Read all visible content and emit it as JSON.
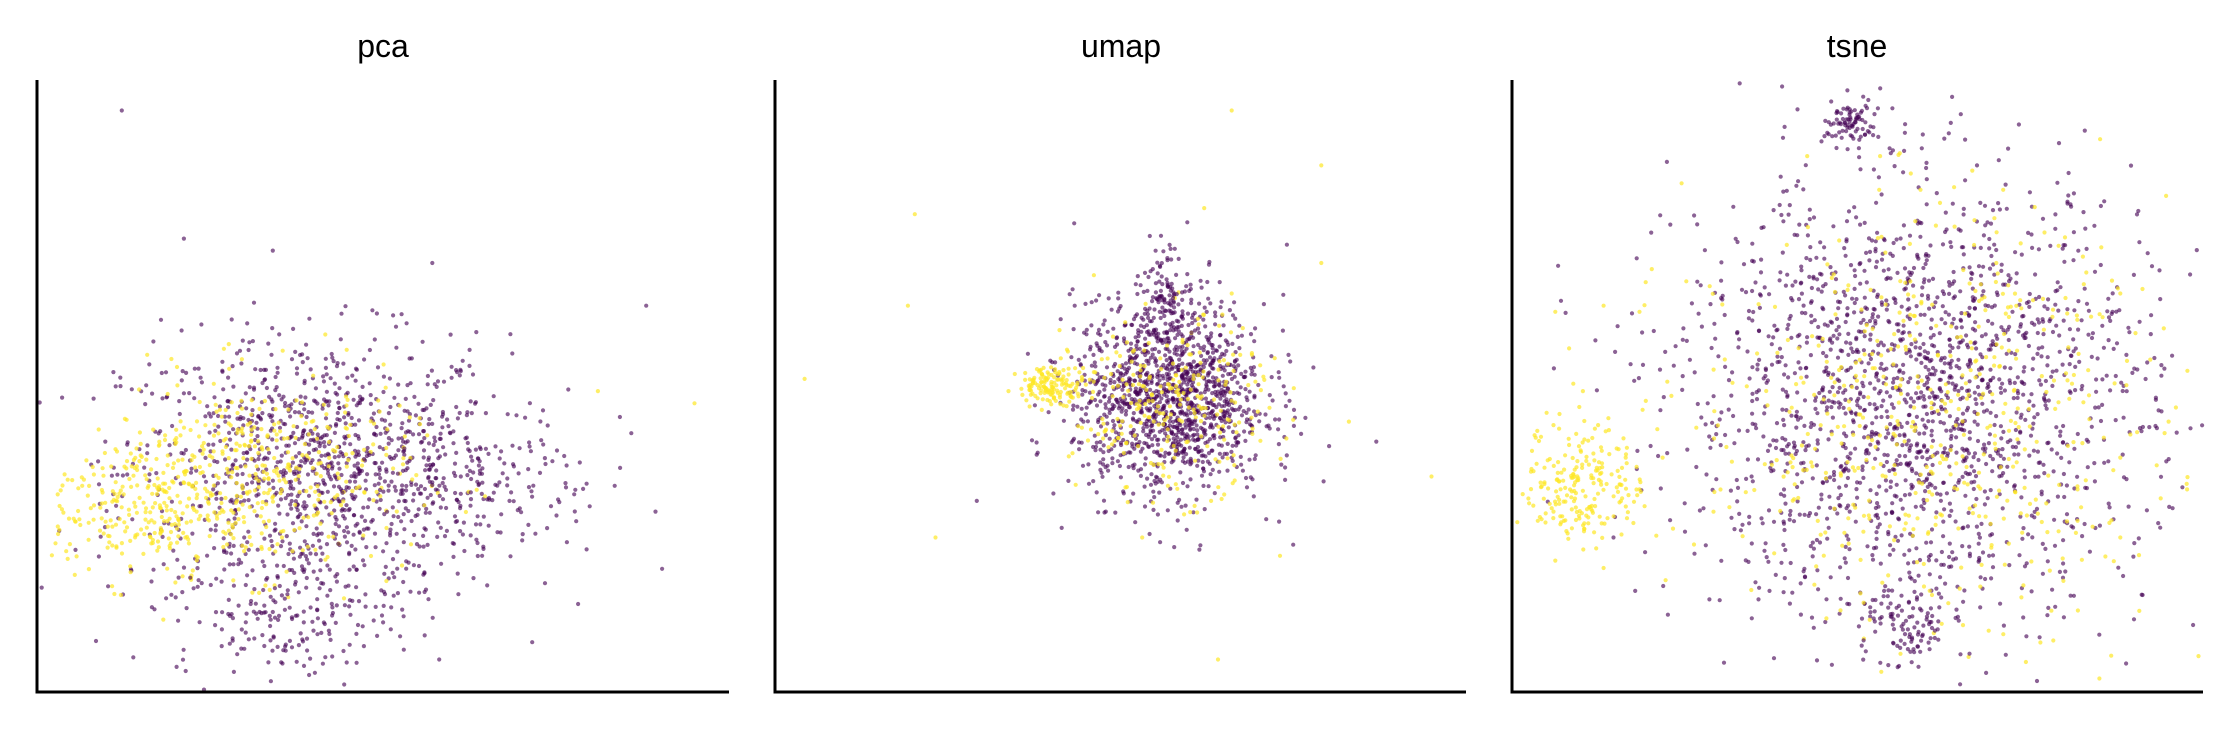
{
  "chart_data": [
    {
      "type": "scatter",
      "title": "pca",
      "xlabel": "",
      "ylabel": "",
      "xlim": [
        0,
        100
      ],
      "ylim": [
        0,
        100
      ],
      "grid": false,
      "legend": "none",
      "colors": {
        "group_a": "#440154",
        "group_b": "#fde725"
      },
      "clusters": [
        {
          "group": "group_a",
          "cx": 40,
          "cy": 36,
          "sx": 14,
          "sy": 11,
          "n": 1100
        },
        {
          "group": "group_b",
          "cx": 32,
          "cy": 35,
          "sx": 11,
          "sy": 8,
          "n": 420
        },
        {
          "group": "group_b",
          "cx": 14,
          "cy": 30,
          "sx": 6,
          "sy": 6,
          "n": 220
        },
        {
          "group": "group_a",
          "cx": 62,
          "cy": 35,
          "sx": 10,
          "sy": 7,
          "n": 180
        },
        {
          "group": "group_a",
          "cx": 36,
          "cy": 12,
          "sx": 8,
          "sy": 5,
          "n": 160
        }
      ],
      "outliers": [
        {
          "x": 12,
          "y": 95,
          "group": "group_a"
        },
        {
          "x": 57,
          "y": 70,
          "group": "group_a"
        },
        {
          "x": 88,
          "y": 63,
          "group": "group_a"
        },
        {
          "x": 95,
          "y": 47,
          "group": "group_b"
        },
        {
          "x": 81,
          "y": 49,
          "group": "group_b"
        },
        {
          "x": 58,
          "y": 5,
          "group": "group_a"
        },
        {
          "x": 21,
          "y": 74,
          "group": "group_a"
        }
      ]
    },
    {
      "type": "scatter",
      "title": "umap",
      "xlabel": "",
      "ylabel": "",
      "xlim": [
        0,
        100
      ],
      "ylim": [
        0,
        100
      ],
      "grid": false,
      "legend": "none",
      "colors": {
        "group_a": "#440154",
        "group_b": "#fde725"
      },
      "clusters": [
        {
          "group": "group_a",
          "cx": 57,
          "cy": 48,
          "sx": 7,
          "sy": 8,
          "n": 1300
        },
        {
          "group": "group_b",
          "cx": 57,
          "cy": 46,
          "sx": 7,
          "sy": 7,
          "n": 250
        },
        {
          "group": "group_b",
          "cx": 40,
          "cy": 50,
          "sx": 2.5,
          "sy": 1.5,
          "n": 140
        },
        {
          "group": "group_a",
          "cx": 57,
          "cy": 65,
          "sx": 1.5,
          "sy": 4,
          "n": 90
        }
      ],
      "outliers": [
        {
          "x": 66,
          "y": 95,
          "group": "group_b"
        },
        {
          "x": 20,
          "y": 78,
          "group": "group_b"
        },
        {
          "x": 19,
          "y": 63,
          "group": "group_b"
        },
        {
          "x": 4,
          "y": 51,
          "group": "group_b"
        },
        {
          "x": 79,
          "y": 86,
          "group": "group_b"
        },
        {
          "x": 74,
          "y": 73,
          "group": "group_a"
        },
        {
          "x": 79,
          "y": 70,
          "group": "group_b"
        },
        {
          "x": 62,
          "y": 79,
          "group": "group_b"
        },
        {
          "x": 66,
          "y": 65,
          "group": "group_b"
        },
        {
          "x": 46,
          "y": 68,
          "group": "group_b"
        },
        {
          "x": 41,
          "y": 59,
          "group": "group_b"
        },
        {
          "x": 83,
          "y": 44,
          "group": "group_b"
        },
        {
          "x": 95,
          "y": 35,
          "group": "group_b"
        },
        {
          "x": 29,
          "y": 31,
          "group": "group_a"
        },
        {
          "x": 23,
          "y": 25,
          "group": "group_b"
        },
        {
          "x": 53,
          "y": 25,
          "group": "group_b"
        },
        {
          "x": 71,
          "y": 28,
          "group": "group_a"
        },
        {
          "x": 73,
          "y": 22,
          "group": "group_b"
        },
        {
          "x": 64,
          "y": 5,
          "group": "group_b"
        },
        {
          "x": 63,
          "y": 31,
          "group": "group_b"
        }
      ]
    },
    {
      "type": "scatter",
      "title": "tsne",
      "xlabel": "",
      "ylabel": "",
      "xlim": [
        0,
        100
      ],
      "ylim": [
        0,
        100
      ],
      "grid": false,
      "legend": "none",
      "colors": {
        "group_a": "#440154",
        "group_b": "#fde725"
      },
      "clusters": [
        {
          "group": "group_a",
          "cx": 58,
          "cy": 48,
          "sx": 17,
          "sy": 18,
          "n": 1900
        },
        {
          "group": "group_b",
          "cx": 60,
          "cy": 44,
          "sx": 17,
          "sy": 17,
          "n": 520
        },
        {
          "group": "group_b",
          "cx": 10,
          "cy": 34,
          "sx": 4.5,
          "sy": 5,
          "n": 220
        },
        {
          "group": "group_a",
          "cx": 49,
          "cy": 93,
          "sx": 2,
          "sy": 1.8,
          "n": 80
        },
        {
          "group": "group_a",
          "cx": 57,
          "cy": 10,
          "sx": 3,
          "sy": 3,
          "n": 90
        }
      ],
      "outliers": [
        {
          "x": 20,
          "y": 69,
          "group": "group_b"
        },
        {
          "x": 13,
          "y": 63,
          "group": "group_b"
        },
        {
          "x": 6,
          "y": 62,
          "group": "group_b"
        },
        {
          "x": 8,
          "y": 56,
          "group": "group_b"
        },
        {
          "x": 10,
          "y": 49,
          "group": "group_b"
        },
        {
          "x": 25,
          "y": 67,
          "group": "group_b"
        },
        {
          "x": 53,
          "y": 82,
          "group": "group_b"
        },
        {
          "x": 59,
          "y": 82,
          "group": "group_b"
        },
        {
          "x": 71,
          "y": 82,
          "group": "group_b"
        },
        {
          "x": 77,
          "y": 75,
          "group": "group_b"
        },
        {
          "x": 70,
          "y": 70,
          "group": "group_b"
        },
        {
          "x": 88,
          "y": 65,
          "group": "group_b"
        },
        {
          "x": 56,
          "y": 88,
          "group": "group_b"
        },
        {
          "x": 13,
          "y": 20,
          "group": "group_b"
        },
        {
          "x": 22,
          "y": 18,
          "group": "group_b"
        },
        {
          "x": 88,
          "y": 25,
          "group": "group_b"
        },
        {
          "x": 78,
          "y": 13,
          "group": "group_b"
        },
        {
          "x": 95,
          "y": 44,
          "group": "group_b"
        }
      ]
    }
  ]
}
